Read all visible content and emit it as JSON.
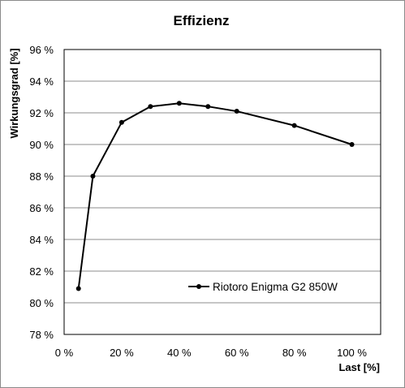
{
  "chart_data": {
    "type": "line",
    "title": "Effizienz",
    "xlabel": "Last [%]",
    "ylabel": "Wirkungsgrad [%]",
    "xlim": [
      0,
      110
    ],
    "ylim": [
      78,
      96
    ],
    "xticks": [
      0,
      20,
      40,
      60,
      80,
      100
    ],
    "yticks": [
      78,
      80,
      82,
      84,
      86,
      88,
      90,
      92,
      94,
      96
    ],
    "xtick_labels": [
      "0 %",
      "20 %",
      "40 %",
      "60 %",
      "80 %",
      "100 %"
    ],
    "ytick_labels": [
      "78 %",
      "80 %",
      "82 %",
      "84 %",
      "86 %",
      "88 %",
      "90 %",
      "92 %",
      "94 %",
      "96 %"
    ],
    "grid": "horizontal",
    "legend_position": "bottom-right",
    "series": [
      {
        "name": "Riotoro Enigma G2 850W",
        "color": "#000000",
        "x": [
          5,
          10,
          20,
          30,
          40,
          50,
          60,
          80,
          100
        ],
        "y": [
          80.9,
          88.0,
          91.4,
          92.4,
          92.6,
          92.4,
          92.1,
          91.2,
          90.0
        ]
      }
    ]
  }
}
